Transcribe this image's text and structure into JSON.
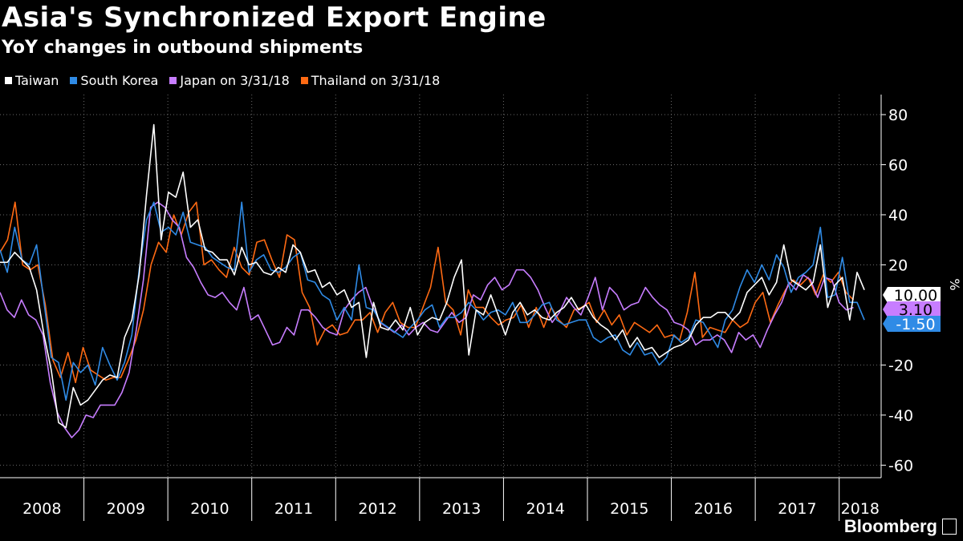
{
  "title": "Asia's Synchronized Export Engine",
  "subtitle": "YoY changes in outbound shipments",
  "brand": "Bloomberg",
  "chart_data": {
    "type": "line",
    "title": "Asia's Synchronized Export Engine",
    "subtitle": "YoY changes in outbound shipments",
    "ylabel": "%",
    "ylim": [
      -65,
      88
    ],
    "y_ticks": [
      80,
      60,
      40,
      20,
      -20,
      -40,
      -60
    ],
    "x_range": [
      2008.0,
      2018.5
    ],
    "x_year_ticks": [
      "2008",
      "2009",
      "2010",
      "2011",
      "2012",
      "2013",
      "2014",
      "2015",
      "2016",
      "2017",
      "2018"
    ],
    "grid": true,
    "legend_position": "top-left",
    "end_labels": [
      {
        "text": "10.00",
        "color": "#ffffff",
        "text_color": "#000000",
        "value": 10.0
      },
      {
        "text": "3.10",
        "color": "#c77dff",
        "text_color": "#000000",
        "value": 3.1
      },
      {
        "text": "-1.50",
        "color": "#2f8be6",
        "text_color": "#ffffff",
        "value": -1.5
      }
    ],
    "series": [
      {
        "name": "Taiwan",
        "color": "#ffffff",
        "x_start": 2008.0,
        "x_end": 2018.3,
        "values": [
          21,
          21,
          25,
          22,
          19,
          10,
          -8,
          -22,
          -43,
          -45,
          -29,
          -36,
          -34,
          -30,
          -26,
          -24,
          -25,
          -9,
          -2,
          16,
          48,
          76,
          30,
          49,
          47,
          57,
          35,
          38,
          26,
          25,
          22,
          22,
          16,
          27,
          20,
          21,
          17,
          16,
          19,
          17,
          28,
          25,
          17,
          18,
          11,
          13,
          8,
          10,
          3,
          5,
          -17,
          5,
          -5,
          -6,
          -2,
          -6,
          3,
          -8,
          -3,
          -1,
          -2,
          5,
          15,
          22,
          -16,
          2,
          0,
          8,
          0,
          -8,
          1,
          5,
          0,
          2,
          -1,
          -2,
          1,
          3,
          7,
          2,
          4,
          -1,
          -4,
          -6,
          -10,
          -6,
          -13,
          -9,
          -14,
          -13,
          -17,
          -15,
          -13,
          -12,
          -10,
          -4,
          -1,
          -1,
          1,
          1,
          -2,
          1,
          9,
          12,
          15,
          8,
          13,
          28,
          14,
          12,
          10,
          13,
          28,
          3,
          12,
          15,
          -2,
          17,
          10
        ]
      },
      {
        "name": "South Korea",
        "color": "#2f8be6",
        "x_start": 2008.0,
        "x_end": 2018.3,
        "values": [
          26,
          17,
          35,
          22,
          20,
          28,
          5,
          -17,
          -19,
          -34,
          -19,
          -23,
          -20,
          -28,
          -13,
          -20,
          -26,
          -19,
          -8,
          18,
          38,
          45,
          33,
          35,
          32,
          41,
          29,
          28,
          27,
          23,
          21,
          19,
          18,
          45,
          17,
          22,
          24,
          18,
          17,
          19,
          23,
          25,
          14,
          13,
          8,
          6,
          -2,
          3,
          -2,
          20,
          3,
          2,
          -3,
          -5,
          -7,
          -9,
          -5,
          -2,
          2,
          4,
          -5,
          -1,
          -1,
          1,
          5,
          2,
          -2,
          1,
          2,
          0,
          5,
          -3,
          -3,
          0,
          4,
          5,
          -2,
          -4,
          -3,
          -2,
          -2,
          -9,
          -11,
          -9,
          -8,
          -14,
          -16,
          -11,
          -16,
          -15,
          -20,
          -17,
          -8,
          -11,
          -9,
          -2,
          -3,
          -8,
          -13,
          -2,
          2,
          11,
          18,
          13,
          20,
          14,
          24,
          19,
          9,
          15,
          17,
          20,
          35,
          7,
          8,
          23,
          5,
          5,
          -2
        ]
      },
      {
        "name": "Japan on 3/31/18",
        "color": "#c77dff",
        "x_start": 2008.0,
        "x_end": 2018.17,
        "values": [
          9,
          2,
          -1,
          6,
          0,
          -2,
          -8,
          -27,
          -39,
          -45,
          -49,
          -46,
          -40,
          -41,
          -36,
          -36,
          -36,
          -31,
          -23,
          -6,
          14,
          43,
          45,
          43,
          38,
          35,
          23,
          19,
          13,
          8,
          7,
          9,
          5,
          2,
          11,
          -2,
          0,
          -6,
          -12,
          -11,
          -5,
          -8,
          2,
          2,
          -1,
          -5,
          -7,
          -8,
          2,
          6,
          9,
          11,
          3,
          -3,
          -5,
          -7,
          -4,
          -8,
          -5,
          -3,
          -6,
          -7,
          -3,
          1,
          -3,
          -1,
          8,
          6,
          12,
          15,
          10,
          12,
          18,
          18,
          15,
          10,
          3,
          -3,
          1,
          7,
          3,
          0,
          7,
          15,
          2,
          11,
          8,
          2,
          4,
          5,
          11,
          7,
          4,
          2,
          -3,
          -4,
          -6,
          -12,
          -10,
          -10,
          -8,
          -10,
          -15,
          -7,
          -10,
          -8,
          -13,
          -6,
          0,
          5,
          13,
          10,
          16,
          14,
          7,
          15,
          14,
          5,
          2,
          3
        ]
      },
      {
        "name": "Thailand on 3/31/18",
        "color": "#ff6a13",
        "x_start": 2008.0,
        "x_end": 2018.17,
        "values": [
          25,
          30,
          45,
          20,
          18,
          20,
          4,
          -18,
          -25,
          -15,
          -27,
          -13,
          -22,
          -24,
          -26,
          -25,
          -25,
          -18,
          -10,
          2,
          20,
          29,
          25,
          40,
          32,
          41,
          45,
          20,
          22,
          18,
          15,
          27,
          19,
          16,
          29,
          30,
          22,
          15,
          32,
          30,
          9,
          3,
          -12,
          -6,
          -4,
          -8,
          -7,
          -2,
          -2,
          1,
          -7,
          1,
          5,
          -3,
          -5,
          -5,
          3,
          11,
          27,
          5,
          2,
          -8,
          10,
          3,
          3,
          -1,
          -4,
          -2,
          -1,
          4,
          -5,
          3,
          -5,
          3,
          -2,
          -5,
          2,
          3,
          5,
          -3,
          2,
          -4,
          0,
          -8,
          -3,
          -5,
          -7,
          -4,
          -9,
          -8,
          -10,
          1,
          17,
          -9,
          -5,
          -6,
          -7,
          -2,
          -5,
          -3,
          5,
          9,
          -3,
          4,
          10,
          14,
          12,
          15,
          8,
          16,
          13,
          17,
          9,
          6
        ]
      }
    ]
  }
}
